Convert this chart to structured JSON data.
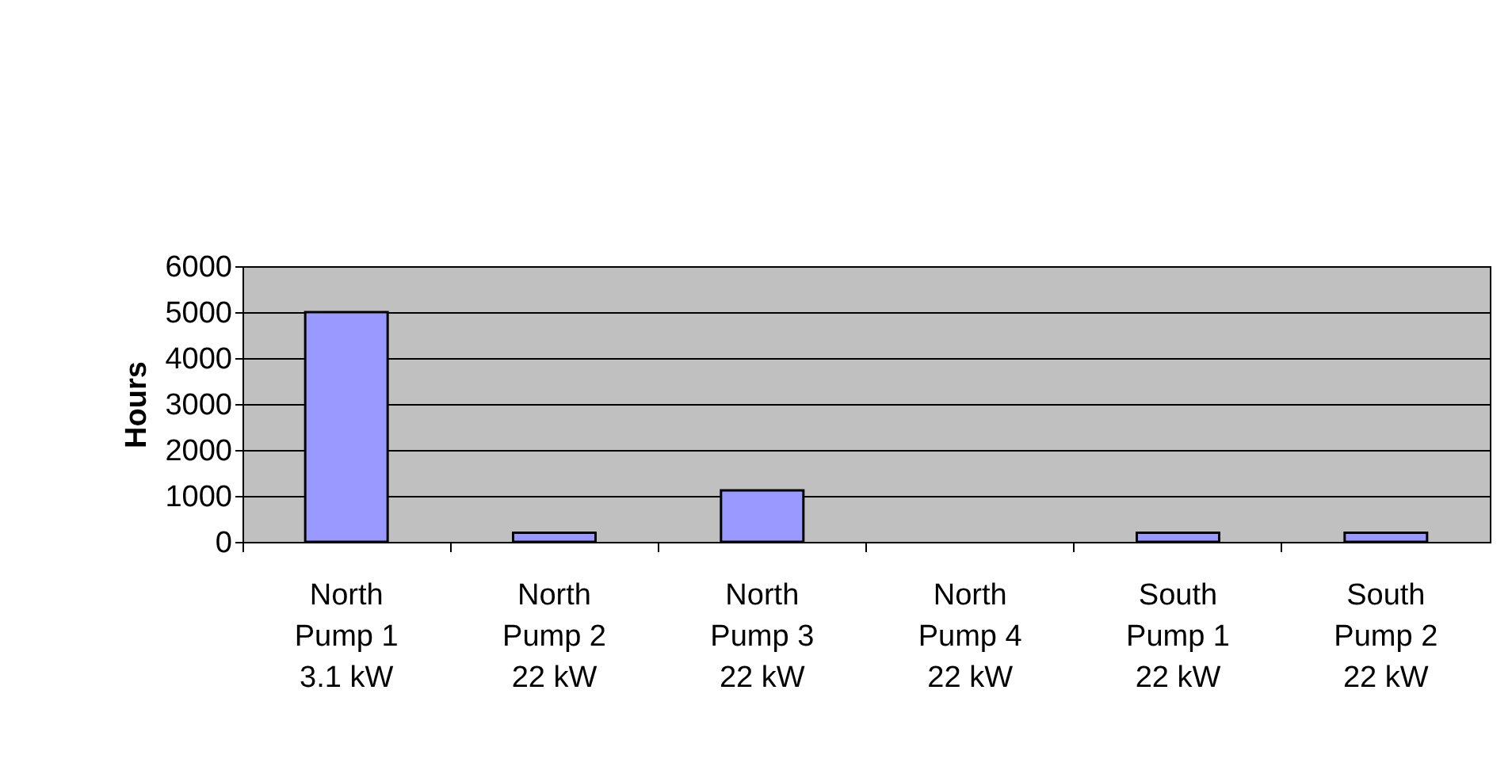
{
  "chart_data": {
    "type": "bar",
    "ylabel": "Hours",
    "categories": [
      "North\nPump 1\n3.1 kW",
      "North\nPump 2\n22 kW",
      "North\nPump 3\n22 kW",
      "North\nPump 4\n22 kW",
      "South\nPump 1\n22 kW",
      "South\nPump 2\n22 kW"
    ],
    "values": [
      5000,
      200,
      1120,
      0,
      200,
      200
    ],
    "color": "#9999ff",
    "ylim": [
      0,
      6000
    ],
    "yticks": [
      0,
      1000,
      2000,
      3000,
      4000,
      5000,
      6000
    ],
    "grid": "y"
  }
}
